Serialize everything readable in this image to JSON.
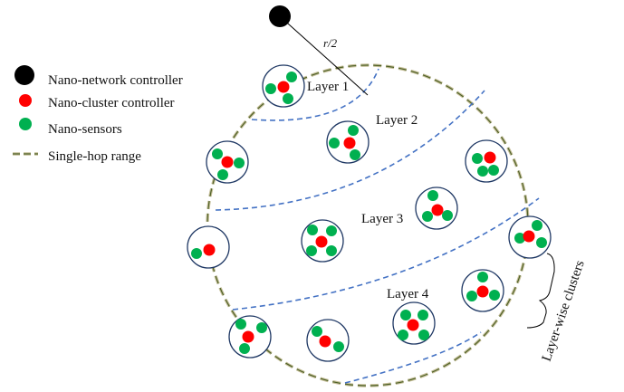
{
  "legend": {
    "controller": "Nano-network controller",
    "cluster_controller": "Nano-cluster controller",
    "sensors": "Nano-sensors",
    "range": "Single-hop range"
  },
  "labels": {
    "radius": "r/2",
    "layer1": "Layer 1",
    "layer2": "Layer 2",
    "layer3": "Layer 3",
    "layer4": "Layer 4",
    "brace": "Layer-wise clusters"
  },
  "colors": {
    "controller": "#000000",
    "cluster_controller": "#ff0000",
    "sensor": "#00b050",
    "layer_boundary": "#4472c4",
    "range_outer": "#4f6228",
    "range_inner": "#c4bd97",
    "cluster_ring": "#1f3864"
  }
}
